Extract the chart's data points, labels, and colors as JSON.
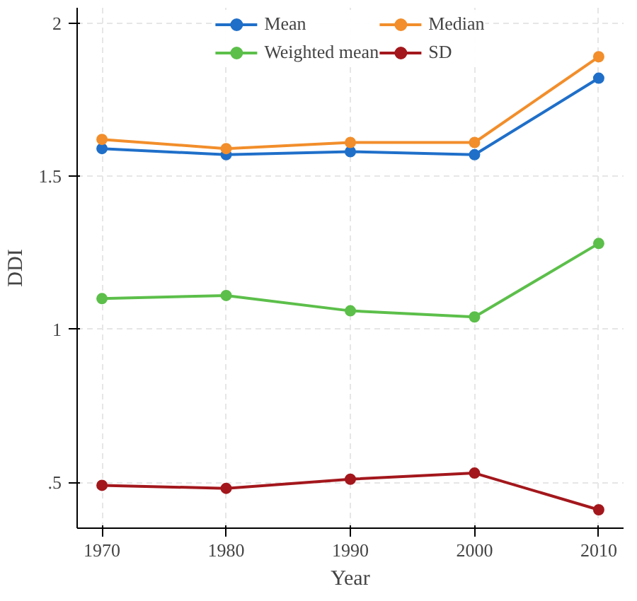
{
  "chart_data": {
    "type": "line",
    "xlabel": "Year",
    "ylabel": "DDI",
    "x": [
      1970,
      1980,
      1990,
      2000,
      2010
    ],
    "series": [
      {
        "name": "Mean",
        "color": "#1f6fc9",
        "values": [
          1.59,
          1.57,
          1.58,
          1.57,
          1.82
        ]
      },
      {
        "name": "Median",
        "color": "#f28e2b",
        "values": [
          1.62,
          1.59,
          1.61,
          1.61,
          1.89
        ]
      },
      {
        "name": "Weighted mean",
        "color": "#5cbf4a",
        "values": [
          1.1,
          1.11,
          1.06,
          1.04,
          1.28
        ]
      },
      {
        "name": "SD",
        "color": "#a3171c",
        "values": [
          0.49,
          0.48,
          0.51,
          0.53,
          0.41
        ]
      }
    ],
    "xlim": [
      1968,
      2012
    ],
    "xticks": [
      1970,
      1980,
      1990,
      2000,
      2010
    ],
    "ylim": [
      0.35,
      2.05
    ],
    "yticks": [
      {
        "value": 0.5,
        "label": ".5"
      },
      1,
      1.5,
      2
    ],
    "grid": true,
    "legend": "top",
    "marker": "circle",
    "line_style": "solid"
  }
}
